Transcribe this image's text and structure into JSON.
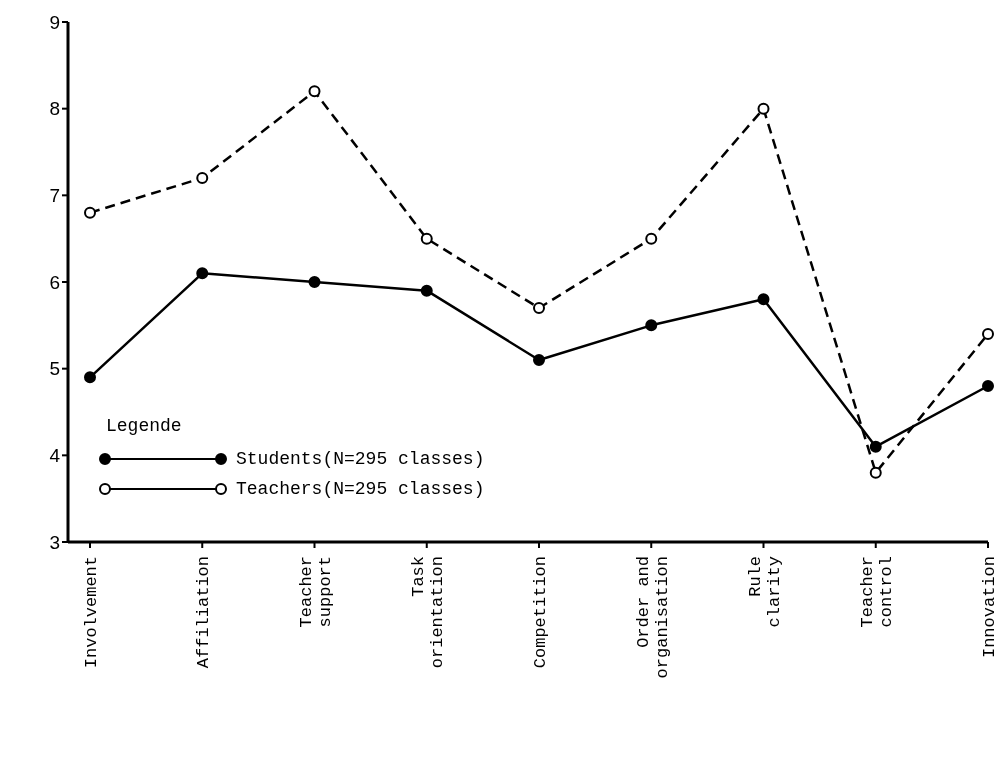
{
  "chart_data": {
    "type": "line",
    "categories": [
      "Involvement",
      "Affiliation",
      "Teacher support",
      "Task orientation",
      "Competition",
      "Order and organisation",
      "Rule clarity",
      "Teacher control",
      "Innovation"
    ],
    "series": [
      {
        "name": "Students(N=295 classes)",
        "color": "#000000",
        "line_style": "solid",
        "values": [
          4.9,
          6.1,
          6.0,
          5.9,
          5.1,
          5.5,
          5.8,
          4.1,
          4.8
        ]
      },
      {
        "name": "Teachers(N=295 classes)",
        "color": "#000000",
        "line_style": "dashed",
        "values": [
          6.8,
          7.2,
          8.2,
          6.5,
          5.7,
          6.5,
          8.0,
          3.8,
          5.4
        ]
      }
    ],
    "ylim": [
      3,
      9
    ],
    "yticks": [
      3,
      4,
      5,
      6,
      7,
      8,
      9
    ],
    "legend": "bottom left",
    "legend_title": "Legende",
    "marker": "circle",
    "grid": false
  }
}
